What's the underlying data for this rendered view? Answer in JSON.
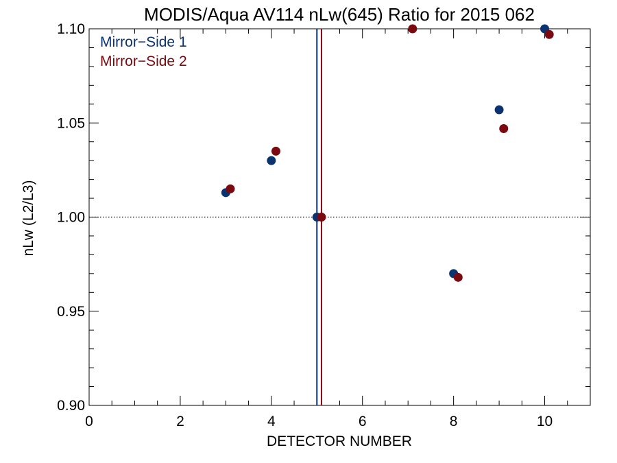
{
  "chart_data": {
    "type": "scatter",
    "title": "MODIS/Aqua AV114 nLw(645) Ratio for 2015 062",
    "xlabel": "DETECTOR NUMBER",
    "ylabel": "nLw (L2/L3)",
    "xlim": [
      0,
      11
    ],
    "ylim": [
      0.9,
      1.1
    ],
    "x_ticks": [
      0,
      2,
      4,
      6,
      8,
      10
    ],
    "x_tick_labels": [
      "0",
      "2",
      "4",
      "6",
      "8",
      "10"
    ],
    "y_ticks": [
      0.9,
      0.95,
      1.0,
      1.05,
      1.1
    ],
    "y_tick_labels": [
      "0.90",
      "0.95",
      "1.00",
      "1.05",
      "1.10"
    ],
    "reference_line_y": 1.0,
    "series": [
      {
        "name": "Mirror−Side 1",
        "color": "#0b3370",
        "x": [
          3,
          4,
          5,
          8,
          9,
          10
        ],
        "y": [
          1.013,
          1.03,
          1.0,
          0.97,
          1.057,
          1.1
        ],
        "vertical_line_x": 5.0
      },
      {
        "name": "Mirror−Side 2",
        "color": "#7a0a10",
        "x": [
          3.1,
          4.1,
          5.1,
          7.1,
          8.1,
          9.1,
          10.1
        ],
        "y": [
          1.015,
          1.035,
          1.0,
          1.1,
          0.968,
          1.047,
          1.097
        ],
        "vertical_line_x": 5.1
      }
    ],
    "legend_position": "top-left",
    "grid": false
  }
}
